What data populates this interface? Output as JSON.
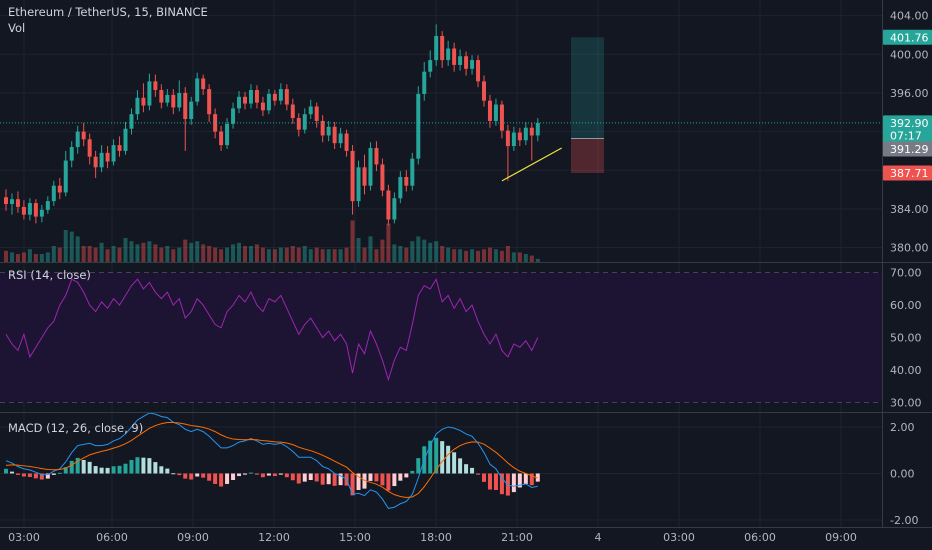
{
  "header": {
    "symbol": "Ethereum / TetherUS, 15, BINANCE",
    "volume_label": "Vol"
  },
  "colors": {
    "background": "#131722",
    "up": "#26a69a",
    "down": "#ef5350",
    "grid": "#1f2330",
    "rsi_line": "#9c27b0",
    "rsi_band": "#1d1333",
    "macd_line": "#2196f3",
    "signal_line": "#ff6d00",
    "trendline": "#f0e040"
  },
  "chart_data": [
    {
      "type": "candlestick",
      "title": "Ethereum / TetherUS, 15, BINANCE",
      "x_ticks": [
        "03:00",
        "06:00",
        "09:00",
        "12:00",
        "15:00",
        "18:00",
        "21:00",
        "4",
        "03:00",
        "06:00",
        "09:00"
      ],
      "y_ticks": [
        "404.00",
        "400.00",
        "396.00",
        "392.00",
        "388.00",
        "384.00",
        "380.00"
      ],
      "ylim": [
        378.5,
        405
      ],
      "grid": true,
      "price_markers": [
        {
          "label": "401.76",
          "value": 401.76,
          "color": "#26a69a"
        },
        {
          "label": "392.90",
          "value": 392.9,
          "color": "#26a69a"
        },
        {
          "label": "07:17",
          "value": 391.6,
          "color": "#26a69a"
        },
        {
          "label": "391.29",
          "value": 390.2,
          "color": "#787b86"
        },
        {
          "label": "387.71",
          "value": 387.71,
          "color": "#ef5350"
        }
      ],
      "position_tool": {
        "entry": 391.29,
        "target": 401.76,
        "stop": 387.71
      },
      "trendline": {
        "from": 386.9,
        "to": 390.3
      },
      "candles": [
        [
          385.2,
          384.5,
          386.0,
          383.8
        ],
        [
          384.5,
          385.0,
          385.6,
          383.4
        ],
        [
          385.0,
          384.2,
          385.8,
          383.6
        ],
        [
          384.2,
          383.4,
          384.9,
          382.9
        ],
        [
          383.4,
          384.6,
          385.1,
          382.8
        ],
        [
          384.6,
          383.2,
          385.0,
          382.5
        ],
        [
          383.2,
          383.9,
          384.4,
          382.6
        ],
        [
          383.9,
          384.8,
          385.3,
          383.5
        ],
        [
          384.8,
          386.4,
          386.9,
          384.3
        ],
        [
          386.4,
          385.7,
          387.2,
          385.0
        ],
        [
          385.7,
          389.0,
          390.0,
          385.3
        ],
        [
          389.0,
          390.4,
          391.0,
          388.3
        ],
        [
          390.4,
          392.0,
          392.6,
          389.7
        ],
        [
          392.0,
          391.2,
          392.9,
          390.5
        ],
        [
          391.2,
          389.4,
          391.8,
          388.6
        ],
        [
          389.4,
          388.3,
          390.0,
          387.2
        ],
        [
          388.3,
          389.8,
          390.6,
          387.8
        ],
        [
          389.8,
          388.9,
          390.5,
          388.2
        ],
        [
          388.9,
          390.6,
          391.2,
          388.5
        ],
        [
          390.6,
          390.0,
          391.5,
          389.4
        ],
        [
          390.0,
          392.3,
          393.0,
          389.6
        ],
        [
          392.3,
          393.8,
          394.4,
          391.7
        ],
        [
          393.8,
          395.5,
          396.3,
          393.2
        ],
        [
          395.5,
          394.7,
          397.0,
          394.0
        ],
        [
          394.7,
          397.2,
          398.0,
          394.2
        ],
        [
          397.2,
          396.3,
          397.9,
          395.6
        ],
        [
          396.3,
          395.0,
          396.9,
          394.4
        ],
        [
          395.0,
          395.8,
          396.4,
          394.6
        ],
        [
          395.8,
          394.5,
          396.4,
          393.8
        ],
        [
          394.5,
          396.0,
          397.3,
          394.1
        ],
        [
          396.0,
          393.3,
          396.6,
          390.0
        ],
        [
          393.3,
          395.1,
          395.6,
          392.7
        ],
        [
          395.1,
          397.5,
          398.1,
          394.7
        ],
        [
          397.5,
          396.4,
          397.9,
          395.8
        ],
        [
          396.4,
          393.8,
          396.9,
          393.0
        ],
        [
          393.8,
          392.0,
          394.4,
          391.3
        ],
        [
          392.0,
          390.6,
          392.6,
          390.0
        ],
        [
          390.6,
          392.8,
          393.4,
          390.2
        ],
        [
          392.8,
          394.4,
          395.0,
          392.3
        ],
        [
          394.4,
          395.6,
          396.2,
          393.9
        ],
        [
          395.6,
          394.9,
          396.1,
          394.3
        ],
        [
          394.9,
          396.3,
          396.9,
          394.4
        ],
        [
          396.3,
          395.0,
          396.8,
          394.4
        ],
        [
          395.0,
          394.2,
          395.6,
          393.6
        ],
        [
          394.2,
          395.9,
          396.4,
          393.8
        ],
        [
          395.9,
          395.2,
          396.3,
          394.7
        ],
        [
          395.2,
          396.4,
          397.0,
          394.8
        ],
        [
          396.4,
          394.8,
          396.9,
          394.2
        ],
        [
          394.8,
          393.4,
          395.4,
          392.8
        ],
        [
          393.4,
          392.2,
          393.9,
          391.5
        ],
        [
          392.2,
          393.8,
          394.4,
          391.8
        ],
        [
          393.8,
          394.6,
          395.3,
          393.3
        ],
        [
          394.6,
          393.1,
          395.0,
          392.4
        ],
        [
          393.1,
          391.6,
          393.7,
          390.9
        ],
        [
          391.6,
          392.5,
          393.1,
          391.0
        ],
        [
          392.5,
          390.8,
          393.0,
          390.2
        ],
        [
          390.8,
          391.8,
          392.4,
          390.3
        ],
        [
          391.8,
          390.0,
          392.2,
          389.4
        ],
        [
          390.0,
          384.8,
          390.6,
          383.4
        ],
        [
          384.8,
          388.3,
          389.0,
          384.2
        ],
        [
          388.3,
          386.4,
          389.6,
          385.5
        ],
        [
          386.4,
          390.3,
          390.9,
          385.9
        ],
        [
          390.3,
          388.6,
          391.0,
          387.9
        ],
        [
          388.6,
          385.9,
          389.2,
          385.3
        ],
        [
          385.9,
          382.9,
          386.5,
          382.3
        ],
        [
          382.9,
          385.1,
          385.7,
          382.5
        ],
        [
          385.1,
          387.3,
          387.9,
          384.6
        ],
        [
          387.3,
          386.4,
          388.0,
          385.8
        ],
        [
          386.4,
          389.2,
          389.8,
          385.9
        ],
        [
          389.2,
          395.9,
          396.7,
          388.6
        ],
        [
          395.9,
          398.2,
          399.2,
          395.2
        ],
        [
          398.2,
          399.4,
          400.4,
          397.6
        ],
        [
          399.4,
          401.9,
          403.1,
          398.8
        ],
        [
          401.9,
          399.4,
          402.4,
          398.6
        ],
        [
          399.4,
          400.6,
          401.4,
          398.8
        ],
        [
          400.6,
          398.9,
          401.2,
          398.2
        ],
        [
          398.9,
          399.8,
          400.5,
          398.3
        ],
        [
          399.8,
          398.5,
          400.3,
          397.8
        ],
        [
          398.5,
          399.4,
          399.9,
          397.9
        ],
        [
          399.4,
          397.2,
          399.9,
          396.6
        ],
        [
          397.2,
          395.2,
          397.8,
          394.6
        ],
        [
          395.2,
          393.1,
          395.8,
          392.4
        ],
        [
          393.1,
          394.8,
          395.4,
          392.6
        ],
        [
          394.8,
          392.1,
          395.2,
          391.3
        ],
        [
          392.1,
          390.5,
          392.7,
          386.9
        ],
        [
          390.5,
          391.9,
          392.5,
          390.0
        ],
        [
          391.9,
          391.1,
          392.4,
          390.5
        ],
        [
          391.1,
          392.4,
          393.0,
          390.6
        ],
        [
          392.4,
          391.6,
          392.9,
          389.0
        ],
        [
          391.6,
          392.9,
          393.4,
          391.0
        ]
      ],
      "volume": [
        7,
        6,
        5,
        6,
        8,
        5,
        5,
        6,
        10,
        9,
        20,
        19,
        16,
        10,
        10,
        9,
        12,
        8,
        10,
        9,
        15,
        13,
        11,
        12,
        13,
        11,
        9,
        10,
        8,
        9,
        14,
        12,
        13,
        11,
        10,
        9,
        8,
        9,
        11,
        12,
        10,
        10,
        11,
        9,
        8,
        8,
        9,
        9,
        10,
        9,
        10,
        8,
        9,
        8,
        8,
        8,
        8,
        9,
        26,
        15,
        9,
        16,
        8,
        14,
        24,
        11,
        10,
        9,
        13,
        16,
        14,
        12,
        13,
        10,
        9,
        8,
        8,
        7,
        8,
        7,
        8,
        9,
        8,
        7,
        10,
        6,
        6,
        5,
        4,
        2
      ]
    },
    {
      "type": "line",
      "title": "RSI (14, close)",
      "y_ticks": [
        "70.00",
        "60.00",
        "50.00",
        "40.00",
        "30.00"
      ],
      "ylim": [
        27,
        73
      ],
      "bands": [
        70,
        30
      ],
      "series": [
        {
          "values": [
            51,
            48,
            46,
            51,
            44,
            47,
            50,
            53,
            55,
            60,
            63,
            68,
            67,
            64,
            60,
            58,
            61,
            59,
            62,
            60,
            63,
            66,
            68,
            65,
            67,
            64,
            62,
            64,
            60,
            62,
            56,
            58,
            62,
            60,
            57,
            54,
            53,
            58,
            60,
            63,
            61,
            64,
            60,
            58,
            62,
            61,
            63,
            59,
            55,
            51,
            54,
            56,
            53,
            50,
            52,
            49,
            51,
            48,
            39,
            48,
            45,
            52,
            48,
            43,
            37,
            43,
            47,
            46,
            54,
            63,
            66,
            65,
            68,
            61,
            63,
            59,
            62,
            58,
            60,
            55,
            51,
            48,
            51,
            46,
            44,
            48,
            47,
            49,
            46,
            50
          ]
        }
      ]
    },
    {
      "type": "bar",
      "title": "MACD (12, 26, close, 9)",
      "y_ticks": [
        "2.00",
        "0.00",
        "-2.00"
      ],
      "ylim": [
        -2.3,
        2.6
      ],
      "series": [
        {
          "values": [
            0.55,
            0.45,
            0.3,
            0.2,
            0.15,
            0.05,
            -0.05,
            -0.05,
            0.1,
            0.2,
            0.5,
            0.9,
            1.2,
            1.25,
            1.3,
            1.2,
            1.2,
            1.25,
            1.4,
            1.5,
            1.7,
            2.0,
            2.3,
            2.45,
            2.6,
            2.55,
            2.45,
            2.4,
            2.2,
            2.1,
            1.9,
            1.8,
            1.9,
            1.8,
            1.6,
            1.35,
            1.1,
            1.1,
            1.2,
            1.35,
            1.4,
            1.5,
            1.4,
            1.25,
            1.3,
            1.25,
            1.3,
            1.15,
            0.95,
            0.7,
            0.7,
            0.7,
            0.55,
            0.3,
            0.2,
            0.0,
            -0.1,
            -0.25,
            -0.9,
            -0.85,
            -0.95,
            -0.7,
            -0.8,
            -1.1,
            -1.5,
            -1.45,
            -1.3,
            -1.2,
            -0.9,
            -0.2,
            0.6,
            1.2,
            1.7,
            1.9,
            2.0,
            1.95,
            1.85,
            1.7,
            1.6,
            1.3,
            0.9,
            0.4,
            0.2,
            -0.2,
            -0.5,
            -0.55,
            -0.5,
            -0.45,
            -0.6,
            -0.55
          ]
        },
        {
          "values": [
            0.35,
            0.37,
            0.36,
            0.33,
            0.3,
            0.26,
            0.21,
            0.17,
            0.16,
            0.17,
            0.23,
            0.36,
            0.53,
            0.67,
            0.8,
            0.88,
            0.95,
            1.01,
            1.09,
            1.17,
            1.28,
            1.42,
            1.6,
            1.77,
            1.94,
            2.06,
            2.14,
            2.19,
            2.19,
            2.17,
            2.12,
            2.06,
            2.03,
            1.98,
            1.91,
            1.8,
            1.66,
            1.55,
            1.48,
            1.46,
            1.45,
            1.46,
            1.45,
            1.41,
            1.39,
            1.36,
            1.35,
            1.31,
            1.24,
            1.13,
            1.05,
            0.98,
            0.89,
            0.78,
            0.66,
            0.53,
            0.4,
            0.27,
            0.04,
            -0.14,
            -0.3,
            -0.38,
            -0.46,
            -0.59,
            -0.77,
            -0.91,
            -0.99,
            -1.03,
            -1.01,
            -0.86,
            -0.57,
            -0.21,
            0.17,
            0.51,
            0.81,
            1.04,
            1.2,
            1.3,
            1.36,
            1.35,
            1.26,
            1.09,
            0.91,
            0.69,
            0.45,
            0.25,
            0.1,
            0.0,
            -0.1,
            -0.2
          ]
        }
      ],
      "histogram": [
        0.2,
        0.08,
        -0.06,
        -0.13,
        -0.15,
        -0.21,
        -0.26,
        -0.22,
        -0.06,
        0.03,
        0.27,
        0.54,
        0.67,
        0.58,
        0.5,
        0.32,
        0.25,
        0.24,
        0.31,
        0.33,
        0.42,
        0.58,
        0.7,
        0.68,
        0.66,
        0.49,
        0.31,
        0.21,
        0.01,
        -0.07,
        -0.22,
        -0.26,
        -0.13,
        -0.18,
        -0.31,
        -0.45,
        -0.56,
        -0.45,
        -0.28,
        -0.11,
        -0.05,
        0.04,
        -0.05,
        -0.16,
        -0.09,
        -0.11,
        -0.05,
        -0.16,
        -0.29,
        -0.43,
        -0.35,
        -0.28,
        -0.34,
        -0.48,
        -0.46,
        -0.53,
        -0.5,
        -0.52,
        -0.94,
        -0.71,
        -0.65,
        -0.32,
        -0.34,
        -0.51,
        -0.73,
        -0.54,
        -0.31,
        -0.17,
        0.11,
        0.66,
        1.17,
        1.41,
        1.53,
        1.39,
        1.19,
        0.91,
        0.65,
        0.4,
        0.24,
        -0.05,
        -0.36,
        -0.69,
        -0.71,
        -0.89,
        -0.95,
        -0.8,
        -0.6,
        -0.45,
        -0.5,
        -0.35
      ]
    }
  ],
  "rsi_label": "RSI (14, close)",
  "macd_label": "MACD (12, 26, close, 9)"
}
